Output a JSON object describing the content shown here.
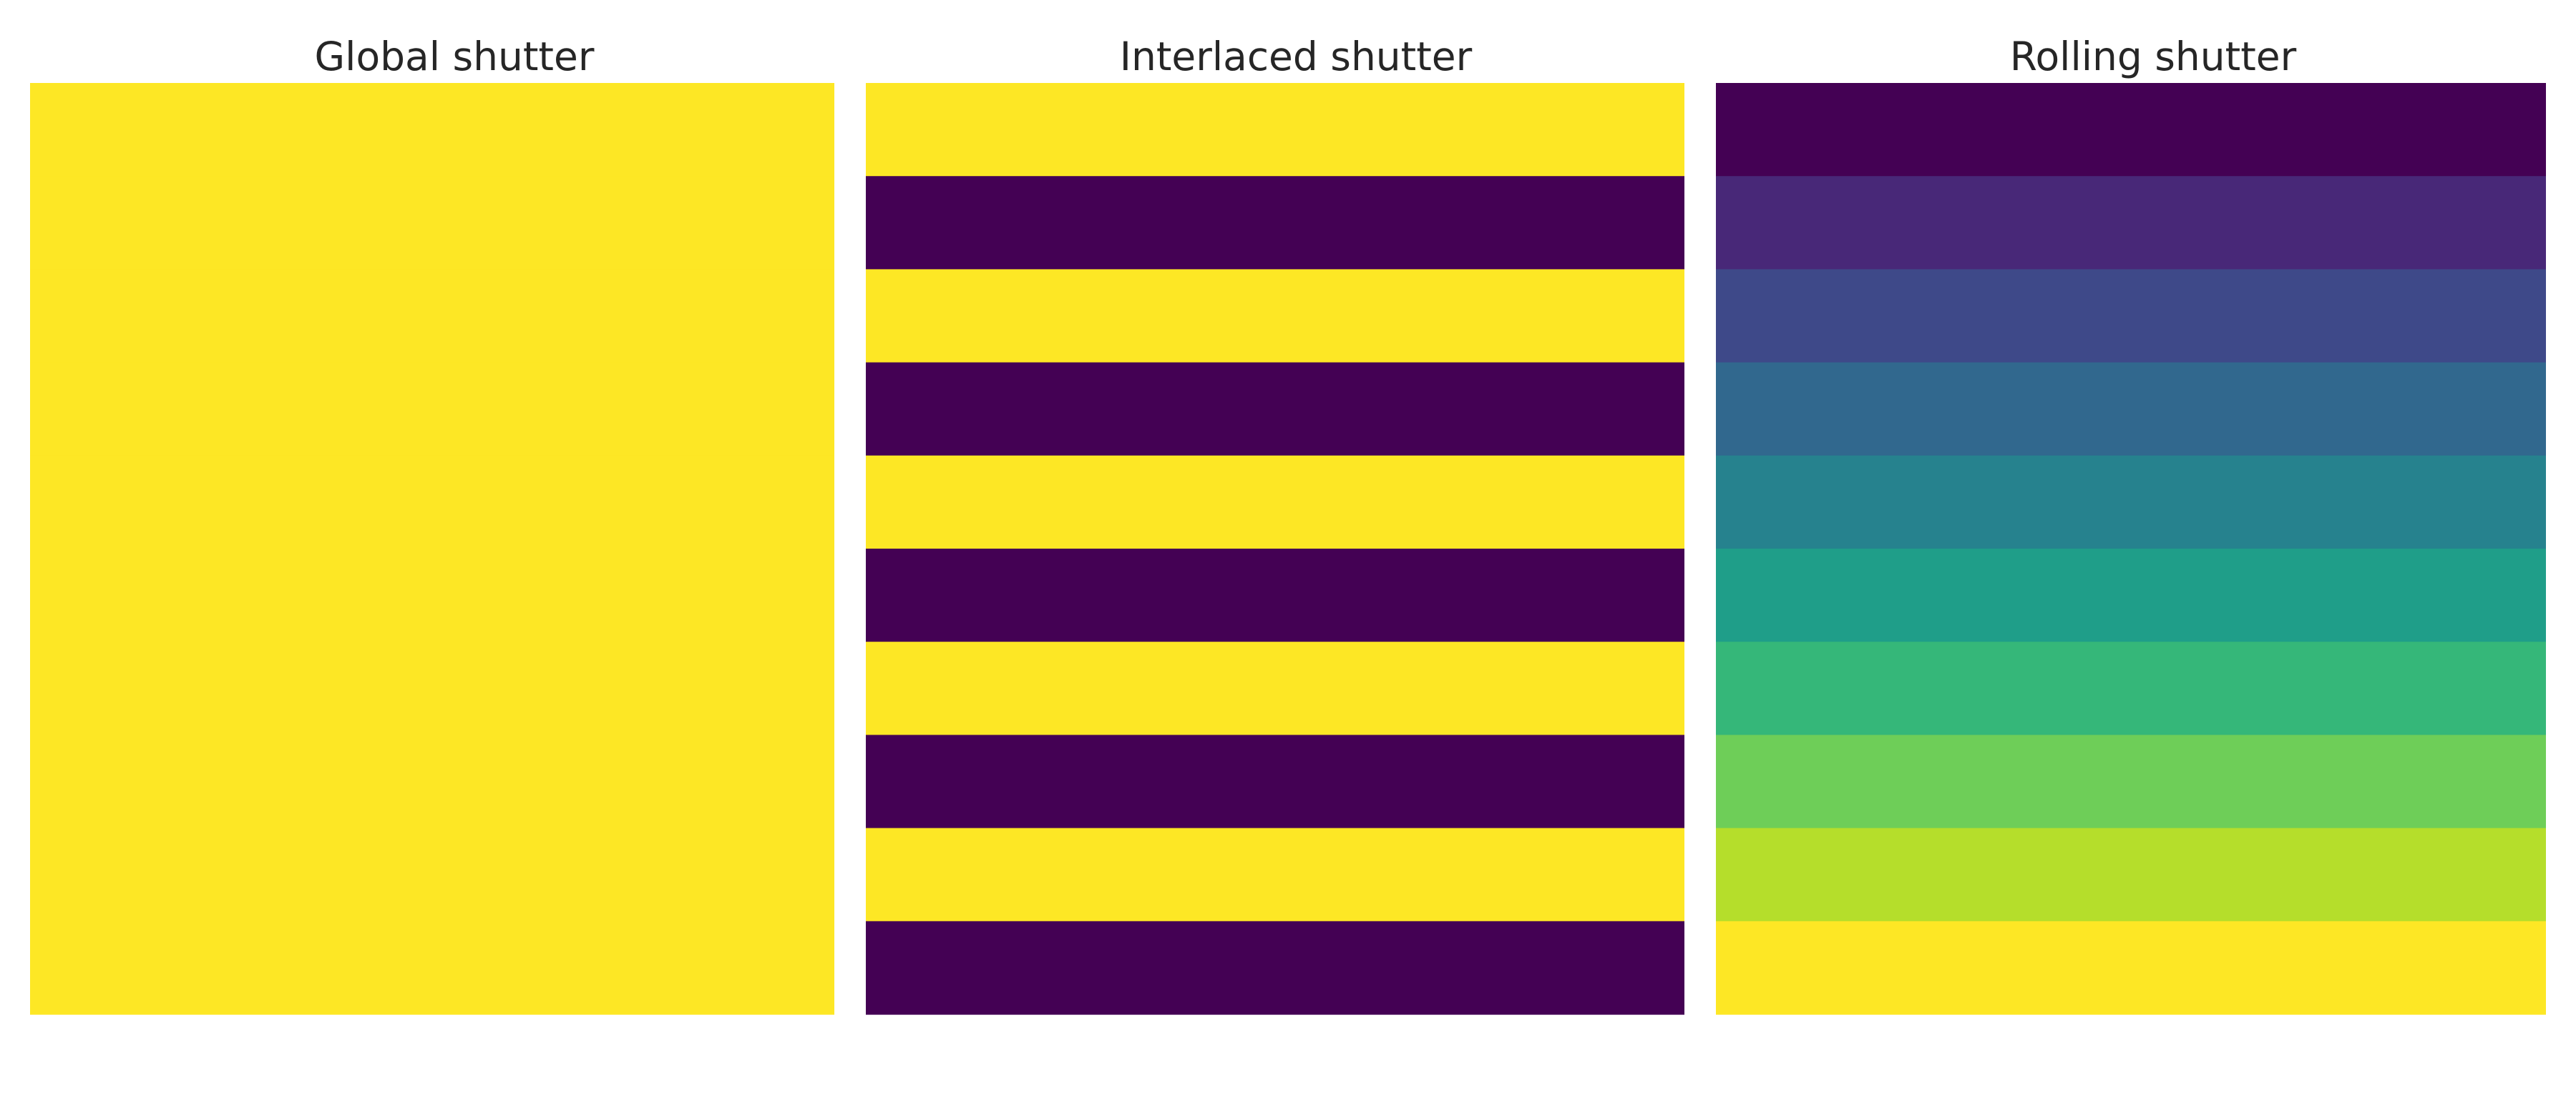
{
  "chart_data": [
    {
      "type": "heatmap",
      "title": "Global shutter",
      "rows": 10,
      "values": [
        1,
        1,
        1,
        1,
        1,
        1,
        1,
        1,
        1,
        1
      ]
    },
    {
      "type": "heatmap",
      "title": "Interlaced shutter",
      "rows": 10,
      "values": [
        1,
        0,
        1,
        0,
        1,
        0,
        1,
        0,
        1,
        0
      ]
    },
    {
      "type": "heatmap",
      "title": "Rolling shutter",
      "rows": 10,
      "values": [
        0,
        1,
        2,
        3,
        4,
        5,
        6,
        7,
        8,
        9
      ]
    }
  ],
  "colormap": {
    "name": "viridis",
    "colors": [
      "#440154",
      "#482878",
      "#3e4989",
      "#31688e",
      "#26828e",
      "#1f9e89",
      "#35b779",
      "#6ece58",
      "#b5de2b",
      "#fde725"
    ]
  }
}
